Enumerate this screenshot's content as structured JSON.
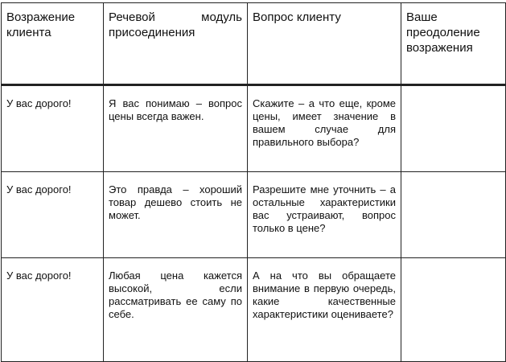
{
  "table": {
    "headers": [
      "Возражение клиента",
      "Речевой модуль присоединения",
      "Вопрос клиенту",
      "Ваше преодоление возражения"
    ],
    "rows": [
      [
        "У вас дорого!",
        "Я вас понимаю – вопрос цены всегда важен.",
        "Скажите – а что еще, кроме цены, имеет значение в вашем случае для правильного выбора?",
        ""
      ],
      [
        "У вас дорого!",
        "Это правда – хороший товар дешево стоить не может.",
        "Разрешите мне уточнить – а остальные характеристики вас устраивают, вопрос только в цене?",
        ""
      ],
      [
        "У вас дорого!",
        "Любая цена кажется высокой, если рассматривать ее саму по себе.",
        "А на что вы обращаете внимание в первую очередь, какие качественные характеристики оцениваете?",
        ""
      ]
    ]
  }
}
